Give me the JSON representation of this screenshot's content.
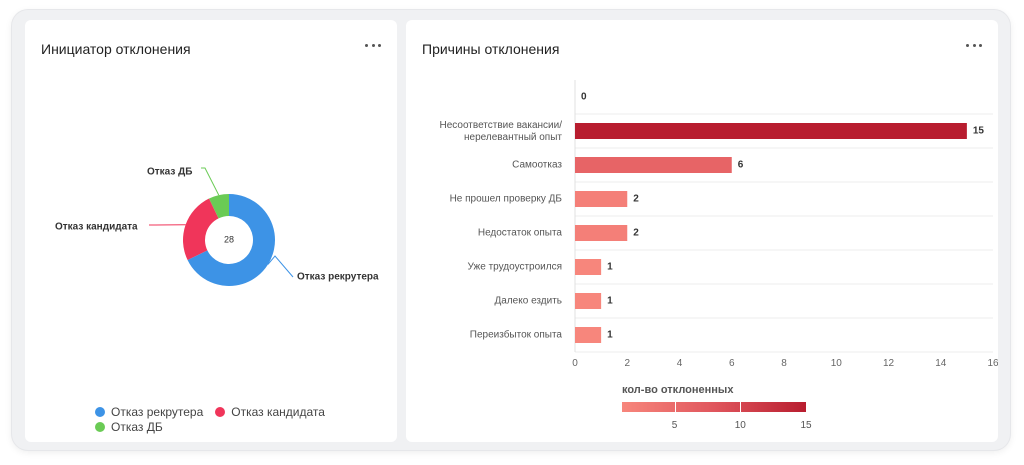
{
  "left_card": {
    "title": "Инициатор отклонения",
    "center_label": "28",
    "legend": [
      {
        "label": "Отказ рекрутера",
        "color": "#3d93e6"
      },
      {
        "label": "Отказ кандидата",
        "color": "#f0355a"
      },
      {
        "label": "Отказ ДБ",
        "color": "#6acb55"
      }
    ]
  },
  "right_card": {
    "title": "Причины отклонения",
    "scale_title": "кол-во отклоненных",
    "scale_ticks": [
      "5",
      "10",
      "15"
    ]
  },
  "chart_data": [
    {
      "type": "pie",
      "title": "Инициатор отклонения",
      "total": 28,
      "slices": [
        {
          "label": "Отказ рекрутера",
          "value": 19,
          "color": "#3d93e6"
        },
        {
          "label": "Отказ кандидата",
          "value": 7,
          "color": "#f0355a"
        },
        {
          "label": "Отказ ДБ",
          "value": 2,
          "color": "#6acb55"
        }
      ]
    },
    {
      "type": "bar",
      "orientation": "horizontal",
      "title": "Причины отклонения",
      "categories": [
        "",
        "Несоответствие вакансии/ нерелевантный опыт",
        "Самоотказ",
        "Не прошел проверку ДБ",
        "Недостаток опыта",
        "Уже трудоустроился",
        "Далеко ездить",
        "Переизбыток опыта"
      ],
      "values": [
        0,
        15,
        6,
        2,
        2,
        1,
        1,
        1
      ],
      "xlim": [
        0,
        16
      ],
      "xticks": [
        0,
        2,
        4,
        6,
        8,
        10,
        12,
        14,
        16
      ],
      "grid": true,
      "color_scale": {
        "title": "кол-во отклоненных",
        "low": "#f7867c",
        "mid": "#e0565d",
        "high": "#b81d2f"
      }
    }
  ]
}
